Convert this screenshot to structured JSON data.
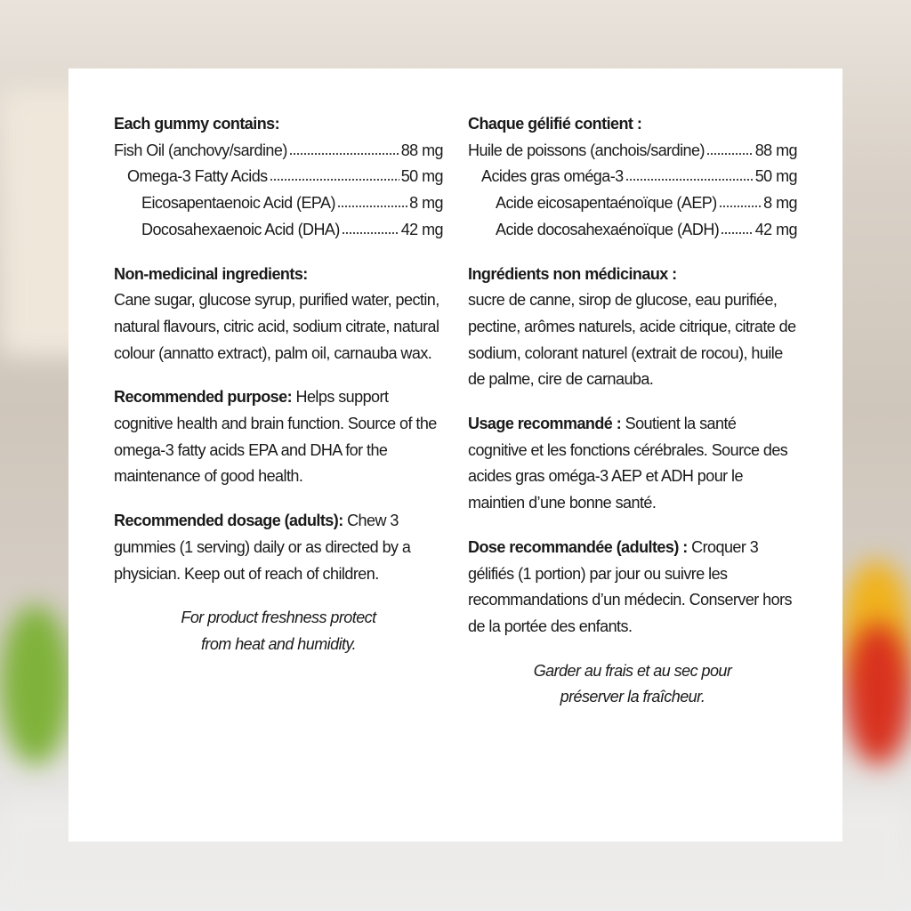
{
  "colors": {
    "card": "#ffffff",
    "text": "#1a1a1a"
  },
  "english": {
    "contains_heading": "Each gummy contains:",
    "rows": [
      {
        "label": "Fish Oil (anchovy/sardine)",
        "value": "88 mg"
      },
      {
        "label": "Omega-3 Fatty Acids",
        "value": "50 mg"
      },
      {
        "label": "Eicosapentaenoic Acid (EPA)",
        "value": "8 mg"
      },
      {
        "label": "Docosahexaenoic Acid (DHA)",
        "value": "42 mg"
      }
    ],
    "nmi_heading": "Non-medicinal ingredients:",
    "nmi_text": "Cane sugar, glucose syrup, purified water, pectin, natural flavours, citric acid, sodium citrate, natural colour (annatto extract), palm oil, carnauba wax.",
    "purpose_heading": "Recommended purpose:",
    "purpose_text": " Helps support cognitive health and brain function. Source of the omega-3 fatty acids EPA and DHA for the maintenance of good health.",
    "dosage_heading": "Recommended dosage (adults):",
    "dosage_text": " Chew 3 gummies (1 serving) daily or as directed by a physician. Keep out of reach of children.",
    "storage_line1": "For product freshness protect",
    "storage_line2": "from heat and humidity."
  },
  "french": {
    "contains_heading": "Chaque gélifié contient :",
    "rows": [
      {
        "label": "Huile de poissons (anchois/sardine)",
        "value": "88 mg"
      },
      {
        "label": "Acides gras oméga-3",
        "value": "50 mg"
      },
      {
        "label": "Acide eicosapentaénoïque (AEP)",
        "value": "8 mg"
      },
      {
        "label": "Acide docosahexaénoïque (ADH)",
        "value": "42 mg"
      }
    ],
    "nmi_heading": "Ingrédients non médicinaux :",
    "nmi_text": "sucre de canne, sirop de glucose, eau purifiée, pectine, arômes naturels, acide citrique, citrate de sodium, colorant naturel (extrait de rocou), huile de palme, cire de carnauba.",
    "purpose_heading": "Usage recommandé :",
    "purpose_text": " Soutient la santé cognitive et les fonctions cérébrales. Source des acides gras oméga-3 AEP et ADH pour le maintien d’une bonne santé.",
    "dosage_heading": "Dose recommandée (adultes) :",
    "dosage_text": " Croquer 3 gélifiés (1 portion) par jour ou suivre les recommandations d’un médecin. Conserver hors de la portée des enfants.",
    "storage_line1": "Garder au frais et au sec pour",
    "storage_line2": "préserver la fraîcheur."
  }
}
